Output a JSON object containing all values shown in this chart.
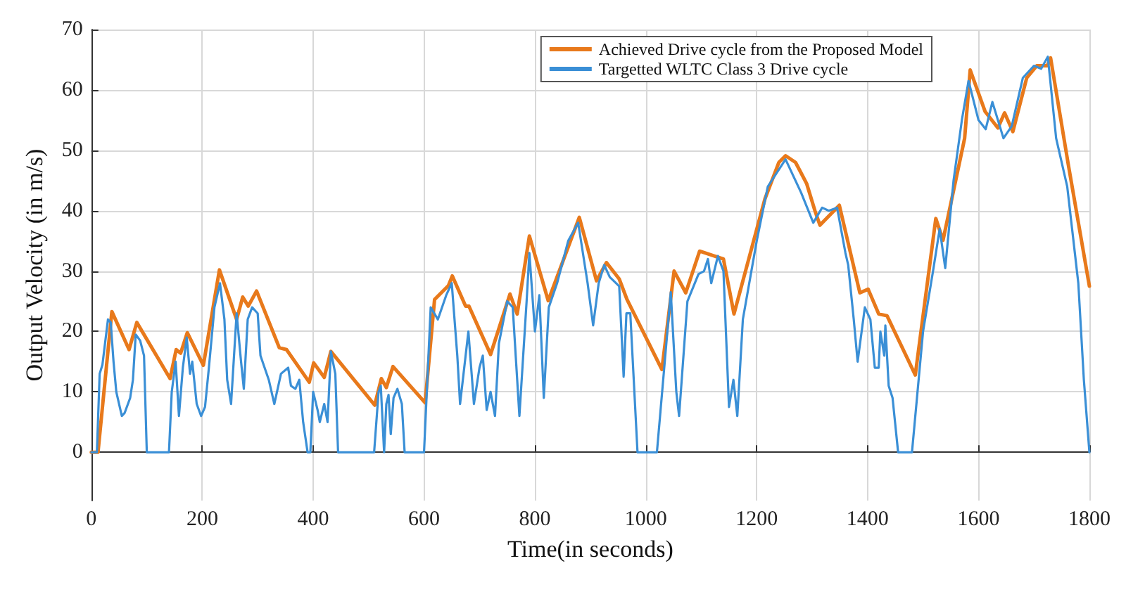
{
  "chart_data": {
    "type": "line",
    "xlabel": "Time(in seconds)",
    "ylabel": "Output Velocity (in m/s)",
    "xlim": [
      0,
      1800
    ],
    "xticks": [
      0,
      200,
      400,
      600,
      800,
      1000,
      1200,
      1400,
      1600,
      1800
    ],
    "ylim": [
      -8,
      70
    ],
    "yticks": [
      0,
      10,
      20,
      30,
      40,
      50,
      60,
      70
    ],
    "grid": true,
    "legend": "top right",
    "marker": "none",
    "line_style": "solid",
    "series": [
      {
        "name": "Achieved Drive cycle from the Proposed Model",
        "color": "#e8791b",
        "x": [
          0,
          12,
          37,
          68,
          82,
          142,
          153,
          161,
          173,
          202,
          231,
          262,
          273,
          283,
          298,
          339,
          352,
          393,
          401,
          420,
          432,
          511,
          523,
          532,
          544,
          602,
          619,
          644,
          651,
          675,
          681,
          720,
          755,
          768,
          790,
          824,
          880,
          911,
          929,
          952,
          966,
          1029,
          1051,
          1072,
          1097,
          1140,
          1159,
          1202,
          1215,
          1240,
          1252,
          1270,
          1290,
          1305,
          1314,
          1349,
          1386,
          1401,
          1420,
          1435,
          1486,
          1523,
          1536,
          1575,
          1585,
          1612,
          1635,
          1647,
          1662,
          1687,
          1705,
          1724,
          1730,
          1762,
          1800
        ],
        "values": [
          0,
          0,
          23.3,
          17,
          21.5,
          12.2,
          17,
          16.4,
          19.8,
          14.4,
          30.2,
          22,
          25.7,
          24.2,
          26.7,
          17.3,
          17,
          11.6,
          14.8,
          12.4,
          16.7,
          7.8,
          12.2,
          10.7,
          14.2,
          8.2,
          25.3,
          27.6,
          29.2,
          24.2,
          24.2,
          16.2,
          26.2,
          22.9,
          35.8,
          25.1,
          38.9,
          28.4,
          31.4,
          28.7,
          25.3,
          13.7,
          30,
          26.4,
          33.3,
          32,
          22.9,
          37.6,
          42,
          48,
          49.1,
          48,
          44.5,
          40,
          37.6,
          40.9,
          26.4,
          27,
          22.9,
          22.6,
          12.8,
          38.7,
          35.1,
          52,
          63.3,
          56.4,
          53.7,
          56.2,
          53.1,
          62,
          64,
          64,
          65.3,
          47.6,
          27.5
        ]
      },
      {
        "name": "Targetted WLTC Class 3 Drive cycle",
        "color": "#3a8fd6",
        "x": [
          0,
          10,
          15,
          20,
          30,
          35,
          40,
          45,
          50,
          55,
          60,
          70,
          75,
          80,
          88,
          95,
          100,
          140,
          145,
          152,
          158,
          165,
          172,
          178,
          182,
          190,
          198,
          205,
          212,
          222,
          232,
          240,
          245,
          252,
          262,
          270,
          275,
          282,
          290,
          300,
          305,
          320,
          330,
          342,
          355,
          360,
          368,
          375,
          382,
          390,
          395,
          400,
          408,
          412,
          420,
          426,
          432,
          440,
          445,
          510,
          518,
          522,
          528,
          532,
          536,
          540,
          545,
          552,
          560,
          565,
          600,
          612,
          625,
          640,
          650,
          660,
          665,
          670,
          680,
          690,
          700,
          706,
          713,
          720,
          728,
          735,
          750,
          760,
          772,
          785,
          790,
          800,
          808,
          816,
          825,
          840,
          860,
          878,
          895,
          905,
          915,
          925,
          935,
          952,
          960,
          965,
          972,
          985,
          1020,
          1045,
          1055,
          1060,
          1075,
          1095,
          1105,
          1112,
          1118,
          1130,
          1140,
          1150,
          1158,
          1165,
          1175,
          1200,
          1220,
          1252,
          1280,
          1302,
          1318,
          1330,
          1345,
          1360,
          1365,
          1375,
          1382,
          1395,
          1405,
          1413,
          1420,
          1423,
          1430,
          1432,
          1438,
          1445,
          1455,
          1480,
          1500,
          1518,
          1530,
          1540,
          1555,
          1570,
          1582,
          1600,
          1613,
          1625,
          1645,
          1660,
          1680,
          1700,
          1713,
          1725,
          1740,
          1760,
          1780,
          1790,
          1800
        ],
        "values": [
          0,
          0,
          13,
          14.5,
          22,
          21.5,
          15,
          10,
          8,
          6,
          6.5,
          9,
          12,
          19.5,
          18.5,
          16,
          0,
          0,
          10,
          15,
          6,
          14,
          19,
          13,
          15,
          8,
          6,
          7.5,
          14,
          24,
          28,
          22,
          12,
          8,
          23,
          15,
          10.5,
          22,
          24,
          23,
          16,
          12,
          8,
          13,
          14,
          11,
          10.5,
          12,
          5,
          0,
          0,
          10,
          7,
          5,
          8,
          5,
          16.7,
          13,
          0,
          0,
          10,
          11,
          0,
          8,
          9.5,
          3,
          9,
          10.5,
          8,
          0,
          0,
          24,
          22,
          26,
          28,
          16,
          8,
          12,
          20,
          8,
          14,
          16,
          7,
          10,
          6,
          18,
          25,
          24,
          6,
          25,
          33,
          20,
          26,
          9,
          24,
          28,
          35,
          38,
          28,
          21,
          28,
          31,
          29,
          27.5,
          12.5,
          23,
          23,
          0,
          0,
          26.5,
          10,
          6,
          25,
          29.5,
          30,
          32,
          28,
          32.5,
          30,
          7.5,
          12,
          6,
          22,
          35,
          44,
          48.5,
          43,
          38,
          40.5,
          40,
          40.5,
          33,
          31,
          22,
          15,
          24,
          22,
          14,
          14,
          20,
          16,
          21,
          11,
          9,
          0,
          0,
          20,
          30,
          37,
          30.5,
          45,
          55,
          61.5,
          55,
          53.5,
          58,
          52,
          54,
          62,
          64,
          63.5,
          65.5,
          52,
          44,
          28,
          12,
          0
        ]
      }
    ]
  }
}
